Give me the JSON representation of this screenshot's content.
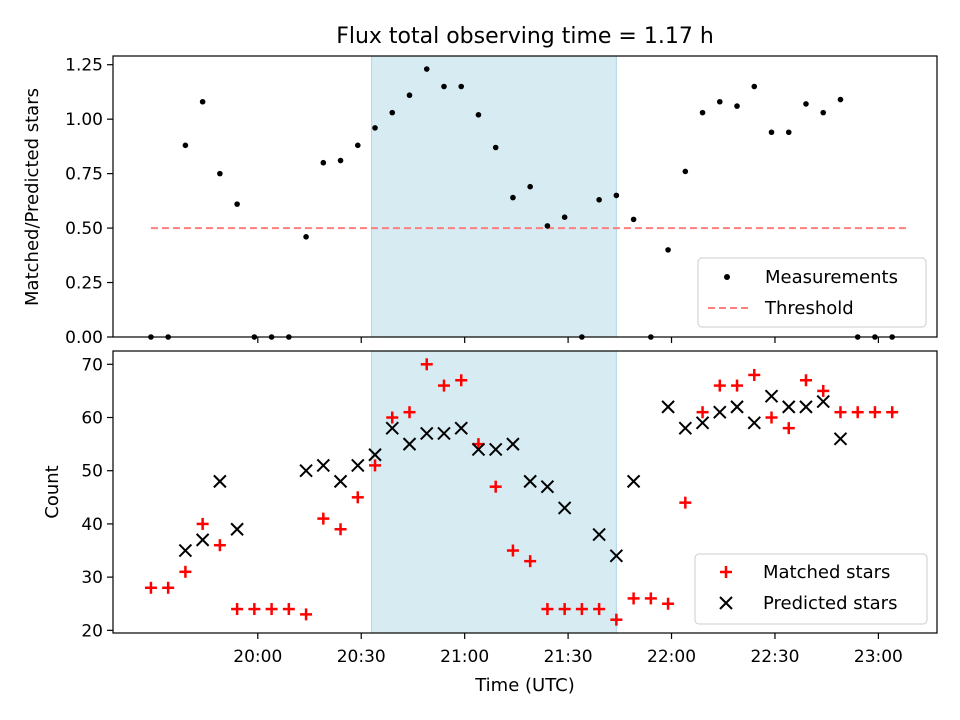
{
  "title": "Flux total observing time = 1.17 h",
  "colors": {
    "shade": "#add8e6",
    "threshold": "#ff7f7f",
    "measure": "#000000",
    "matched": "#ff0000",
    "predicted": "#000000"
  },
  "x_ticks": [
    "20:00",
    "20:30",
    "21:00",
    "21:30",
    "22:00",
    "22:30",
    "23:00"
  ],
  "x_tick_minutes": [
    1200,
    1230,
    1260,
    1290,
    1320,
    1350,
    1380
  ],
  "xlabel": "Time (UTC)",
  "chart_data": [
    {
      "type": "scatter",
      "ylabel": "Matched/Predicted stars",
      "xlim_minutes": [
        1158,
        1397
      ],
      "ylim": [
        0,
        1.29
      ],
      "yticks": [
        "0.00",
        "0.25",
        "0.50",
        "0.75",
        "1.00",
        "1.25"
      ],
      "ytick_values": [
        0,
        0.25,
        0.5,
        0.75,
        1.0,
        1.25
      ],
      "shaded_span_minutes": [
        1233,
        1304
      ],
      "threshold": {
        "name": "Threshold",
        "value": 0.5,
        "x_minutes": [
          1169,
          1388
        ]
      },
      "legend": {
        "position": "lower right",
        "entries": [
          "Measurements",
          "Threshold"
        ]
      },
      "series": [
        {
          "name": "Measurements",
          "marker": "dot",
          "points": [
            [
              1169,
              0.0
            ],
            [
              1174,
              0.0
            ],
            [
              1179,
              0.88
            ],
            [
              1184,
              1.08
            ],
            [
              1189,
              0.75
            ],
            [
              1194,
              0.61
            ],
            [
              1199,
              0.0
            ],
            [
              1204,
              0.0
            ],
            [
              1209,
              0.0
            ],
            [
              1214,
              0.46
            ],
            [
              1219,
              0.8
            ],
            [
              1224,
              0.81
            ],
            [
              1229,
              0.88
            ],
            [
              1234,
              0.96
            ],
            [
              1239,
              1.03
            ],
            [
              1244,
              1.11
            ],
            [
              1249,
              1.23
            ],
            [
              1254,
              1.15
            ],
            [
              1259,
              1.15
            ],
            [
              1264,
              1.02
            ],
            [
              1269,
              0.87
            ],
            [
              1274,
              0.64
            ],
            [
              1279,
              0.69
            ],
            [
              1284,
              0.51
            ],
            [
              1289,
              0.55
            ],
            [
              1294,
              0.0
            ],
            [
              1299,
              0.63
            ],
            [
              1304,
              0.65
            ],
            [
              1309,
              0.54
            ],
            [
              1314,
              0.0
            ],
            [
              1319,
              0.4
            ],
            [
              1324,
              0.76
            ],
            [
              1329,
              1.03
            ],
            [
              1334,
              1.08
            ],
            [
              1339,
              1.06
            ],
            [
              1344,
              1.15
            ],
            [
              1349,
              0.94
            ],
            [
              1354,
              0.94
            ],
            [
              1359,
              1.07
            ],
            [
              1364,
              1.03
            ],
            [
              1369,
              1.09
            ],
            [
              1374,
              0.0
            ],
            [
              1379,
              0.0
            ],
            [
              1384,
              0.0
            ]
          ]
        }
      ]
    },
    {
      "type": "scatter",
      "ylabel": "Count",
      "xlim_minutes": [
        1158,
        1397
      ],
      "ylim": [
        19.5,
        72.5
      ],
      "yticks": [
        "20",
        "30",
        "40",
        "50",
        "60",
        "70"
      ],
      "ytick_values": [
        20,
        30,
        40,
        50,
        60,
        70
      ],
      "shaded_span_minutes": [
        1233,
        1304
      ],
      "legend": {
        "position": "lower right",
        "entries": [
          "Matched stars",
          "Predicted stars"
        ]
      },
      "series": [
        {
          "name": "Matched stars",
          "marker": "plus",
          "points": [
            [
              1169,
              28
            ],
            [
              1174,
              28
            ],
            [
              1179,
              31
            ],
            [
              1184,
              40
            ],
            [
              1189,
              36
            ],
            [
              1194,
              24
            ],
            [
              1199,
              24
            ],
            [
              1204,
              24
            ],
            [
              1209,
              24
            ],
            [
              1214,
              23
            ],
            [
              1219,
              41
            ],
            [
              1224,
              39
            ],
            [
              1229,
              45
            ],
            [
              1234,
              51
            ],
            [
              1239,
              60
            ],
            [
              1244,
              61
            ],
            [
              1249,
              70
            ],
            [
              1254,
              66
            ],
            [
              1259,
              67
            ],
            [
              1264,
              55
            ],
            [
              1269,
              47
            ],
            [
              1274,
              35
            ],
            [
              1279,
              33
            ],
            [
              1284,
              24
            ],
            [
              1289,
              24
            ],
            [
              1294,
              24
            ],
            [
              1299,
              24
            ],
            [
              1304,
              22
            ],
            [
              1309,
              26
            ],
            [
              1314,
              26
            ],
            [
              1319,
              25
            ],
            [
              1324,
              44
            ],
            [
              1329,
              61
            ],
            [
              1334,
              66
            ],
            [
              1339,
              66
            ],
            [
              1344,
              68
            ],
            [
              1349,
              60
            ],
            [
              1354,
              58
            ],
            [
              1359,
              67
            ],
            [
              1364,
              65
            ],
            [
              1369,
              61
            ],
            [
              1374,
              61
            ],
            [
              1379,
              61
            ],
            [
              1384,
              61
            ]
          ]
        },
        {
          "name": "Predicted stars",
          "marker": "x",
          "points": [
            [
              1179,
              35
            ],
            [
              1184,
              37
            ],
            [
              1189,
              48
            ],
            [
              1194,
              39
            ],
            [
              1214,
              50
            ],
            [
              1219,
              51
            ],
            [
              1224,
              48
            ],
            [
              1229,
              51
            ],
            [
              1234,
              53
            ],
            [
              1239,
              58
            ],
            [
              1244,
              55
            ],
            [
              1249,
              57
            ],
            [
              1254,
              57
            ],
            [
              1259,
              58
            ],
            [
              1264,
              54
            ],
            [
              1269,
              54
            ],
            [
              1274,
              55
            ],
            [
              1279,
              48
            ],
            [
              1284,
              47
            ],
            [
              1289,
              43
            ],
            [
              1299,
              38
            ],
            [
              1304,
              34
            ],
            [
              1309,
              48
            ],
            [
              1319,
              62
            ],
            [
              1324,
              58
            ],
            [
              1329,
              59
            ],
            [
              1334,
              61
            ],
            [
              1339,
              62
            ],
            [
              1344,
              59
            ],
            [
              1349,
              64
            ],
            [
              1354,
              62
            ],
            [
              1359,
              62
            ],
            [
              1364,
              63
            ],
            [
              1369,
              56
            ]
          ]
        }
      ]
    }
  ]
}
